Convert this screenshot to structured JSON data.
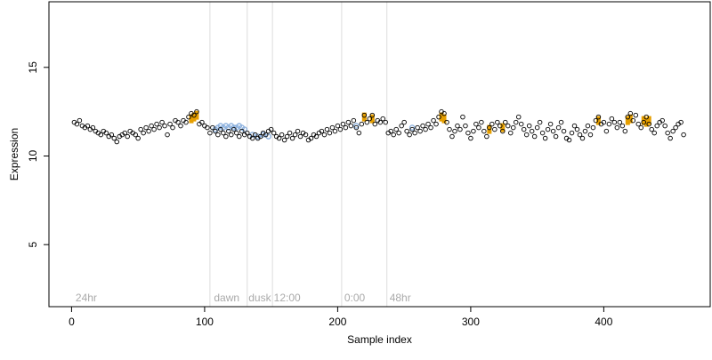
{
  "chart_data": {
    "type": "scatter",
    "title": "",
    "xlabel": "Sample index",
    "ylabel": "Expression",
    "xlim": [
      -17,
      480
    ],
    "ylim": [
      1.5,
      18.7
    ],
    "x_ticks": [
      0,
      100,
      200,
      300,
      400
    ],
    "y_ticks": [
      5,
      10,
      15
    ],
    "grid": false,
    "legend": "none",
    "vertical_lines": [
      104,
      132,
      151,
      203,
      237
    ],
    "annotations": [
      {
        "text": "24hr",
        "x": 3
      },
      {
        "text": "dawn",
        "x": 107
      },
      {
        "text": "dusk",
        "x": 133
      },
      {
        "text": "12:00",
        "x": 152
      },
      {
        "text": "0:00",
        "x": 205
      },
      {
        "text": "48hr",
        "x": 239
      }
    ],
    "annotation_y": 2.0,
    "colors": {
      "point_stroke": "#000000",
      "highlight_orange": "#e69f00",
      "highlight_blue": "#8fb3df",
      "vline": "#dddddd",
      "annotation": "#aaaaaa"
    },
    "series": [
      {
        "name": "",
        "marker": "open-circle",
        "points": [
          [
            2,
            11.9
          ],
          [
            4,
            11.8
          ],
          [
            6,
            12.0
          ],
          [
            8,
            11.7
          ],
          [
            10,
            11.6
          ],
          [
            12,
            11.7
          ],
          [
            14,
            11.5
          ],
          [
            16,
            11.6
          ],
          [
            18,
            11.4
          ],
          [
            20,
            11.3
          ],
          [
            22,
            11.2
          ],
          [
            24,
            11.4
          ],
          [
            26,
            11.3
          ],
          [
            28,
            11.1
          ],
          [
            30,
            11.2
          ],
          [
            32,
            11.0
          ],
          [
            34,
            10.8
          ],
          [
            36,
            11.1
          ],
          [
            38,
            11.2
          ],
          [
            40,
            11.3
          ],
          [
            42,
            11.1
          ],
          [
            44,
            11.4
          ],
          [
            46,
            11.3
          ],
          [
            48,
            11.2
          ],
          [
            50,
            11.0
          ],
          [
            52,
            11.5
          ],
          [
            54,
            11.3
          ],
          [
            56,
            11.6
          ],
          [
            58,
            11.4
          ],
          [
            60,
            11.7
          ],
          [
            62,
            11.5
          ],
          [
            64,
            11.8
          ],
          [
            66,
            11.6
          ],
          [
            68,
            11.9
          ],
          [
            70,
            11.7
          ],
          [
            72,
            11.2
          ],
          [
            74,
            11.8
          ],
          [
            76,
            11.6
          ],
          [
            78,
            12.0
          ],
          [
            80,
            11.9
          ],
          [
            82,
            11.7
          ],
          [
            84,
            12.0
          ],
          [
            86,
            11.9
          ],
          [
            88,
            12.2
          ],
          [
            90,
            12.4
          ],
          [
            92,
            12.3
          ],
          [
            94,
            12.5
          ],
          [
            96,
            11.8
          ],
          [
            98,
            11.9
          ],
          [
            100,
            11.7
          ],
          [
            102,
            11.6
          ],
          [
            104,
            11.3
          ],
          [
            106,
            11.6
          ],
          [
            108,
            11.4
          ],
          [
            110,
            11.2
          ],
          [
            112,
            11.5
          ],
          [
            114,
            11.3
          ],
          [
            116,
            11.1
          ],
          [
            118,
            11.4
          ],
          [
            120,
            11.2
          ],
          [
            122,
            11.5
          ],
          [
            124,
            11.3
          ],
          [
            126,
            11.1
          ],
          [
            128,
            11.4
          ],
          [
            130,
            11.2
          ],
          [
            132,
            11.3
          ],
          [
            134,
            11.1
          ],
          [
            136,
            11.0
          ],
          [
            138,
            11.2
          ],
          [
            140,
            11.0
          ],
          [
            142,
            11.1
          ],
          [
            144,
            11.3
          ],
          [
            146,
            11.2
          ],
          [
            148,
            11.4
          ],
          [
            150,
            11.5
          ],
          [
            152,
            11.3
          ],
          [
            154,
            11.1
          ],
          [
            156,
            11.0
          ],
          [
            158,
            11.2
          ],
          [
            160,
            10.9
          ],
          [
            162,
            11.1
          ],
          [
            164,
            11.3
          ],
          [
            166,
            11.0
          ],
          [
            168,
            11.2
          ],
          [
            170,
            11.4
          ],
          [
            172,
            11.1
          ],
          [
            174,
            11.3
          ],
          [
            176,
            11.2
          ],
          [
            178,
            10.9
          ],
          [
            180,
            11.0
          ],
          [
            182,
            11.2
          ],
          [
            184,
            11.1
          ],
          [
            186,
            11.3
          ],
          [
            188,
            11.4
          ],
          [
            190,
            11.2
          ],
          [
            192,
            11.5
          ],
          [
            194,
            11.3
          ],
          [
            196,
            11.6
          ],
          [
            198,
            11.4
          ],
          [
            200,
            11.7
          ],
          [
            202,
            11.5
          ],
          [
            204,
            11.8
          ],
          [
            206,
            11.6
          ],
          [
            208,
            11.9
          ],
          [
            210,
            11.7
          ],
          [
            212,
            12.0
          ],
          [
            214,
            11.6
          ],
          [
            216,
            11.3
          ],
          [
            218,
            11.8
          ],
          [
            220,
            12.3
          ],
          [
            222,
            11.9
          ],
          [
            224,
            12.1
          ],
          [
            226,
            12.3
          ],
          [
            228,
            11.8
          ],
          [
            230,
            12.0
          ],
          [
            232,
            11.9
          ],
          [
            234,
            12.1
          ],
          [
            236,
            11.9
          ],
          [
            238,
            11.3
          ],
          [
            240,
            11.4
          ],
          [
            242,
            11.2
          ],
          [
            244,
            11.5
          ],
          [
            246,
            11.3
          ],
          [
            248,
            11.7
          ],
          [
            250,
            11.9
          ],
          [
            252,
            11.4
          ],
          [
            254,
            11.2
          ],
          [
            256,
            11.5
          ],
          [
            258,
            11.3
          ],
          [
            260,
            11.6
          ],
          [
            262,
            11.4
          ],
          [
            264,
            11.7
          ],
          [
            266,
            11.5
          ],
          [
            268,
            11.8
          ],
          [
            270,
            11.6
          ],
          [
            272,
            12.0
          ],
          [
            274,
            11.8
          ],
          [
            276,
            12.2
          ],
          [
            278,
            12.5
          ],
          [
            280,
            12.4
          ],
          [
            282,
            11.9
          ],
          [
            284,
            11.5
          ],
          [
            286,
            11.1
          ],
          [
            288,
            11.4
          ],
          [
            290,
            11.7
          ],
          [
            292,
            11.5
          ],
          [
            294,
            12.2
          ],
          [
            296,
            11.7
          ],
          [
            298,
            11.3
          ],
          [
            300,
            11.0
          ],
          [
            302,
            11.4
          ],
          [
            304,
            11.8
          ],
          [
            306,
            11.6
          ],
          [
            308,
            11.9
          ],
          [
            310,
            11.4
          ],
          [
            312,
            11.1
          ],
          [
            314,
            11.6
          ],
          [
            316,
            11.8
          ],
          [
            318,
            11.5
          ],
          [
            320,
            11.9
          ],
          [
            322,
            11.7
          ],
          [
            324,
            11.4
          ],
          [
            326,
            11.9
          ],
          [
            328,
            11.7
          ],
          [
            330,
            11.3
          ],
          [
            332,
            11.6
          ],
          [
            334,
            11.9
          ],
          [
            336,
            12.2
          ],
          [
            338,
            11.8
          ],
          [
            340,
            11.5
          ],
          [
            342,
            11.2
          ],
          [
            344,
            11.7
          ],
          [
            346,
            11.4
          ],
          [
            348,
            11.1
          ],
          [
            350,
            11.6
          ],
          [
            352,
            11.9
          ],
          [
            354,
            11.3
          ],
          [
            356,
            11.0
          ],
          [
            358,
            11.5
          ],
          [
            360,
            11.8
          ],
          [
            362,
            11.4
          ],
          [
            364,
            11.1
          ],
          [
            366,
            11.6
          ],
          [
            368,
            11.9
          ],
          [
            370,
            11.4
          ],
          [
            372,
            11.0
          ],
          [
            374,
            10.9
          ],
          [
            376,
            11.3
          ],
          [
            378,
            11.7
          ],
          [
            380,
            11.5
          ],
          [
            382,
            11.2
          ],
          [
            384,
            11.0
          ],
          [
            386,
            11.4
          ],
          [
            388,
            11.7
          ],
          [
            390,
            11.2
          ],
          [
            392,
            11.6
          ],
          [
            394,
            12.0
          ],
          [
            396,
            12.2
          ],
          [
            398,
            11.8
          ],
          [
            400,
            11.9
          ],
          [
            402,
            11.4
          ],
          [
            404,
            11.8
          ],
          [
            406,
            12.1
          ],
          [
            408,
            11.9
          ],
          [
            410,
            11.6
          ],
          [
            412,
            11.9
          ],
          [
            414,
            11.7
          ],
          [
            416,
            11.4
          ],
          [
            418,
            12.2
          ],
          [
            420,
            12.4
          ],
          [
            422,
            12.0
          ],
          [
            424,
            12.3
          ],
          [
            426,
            11.8
          ],
          [
            428,
            11.6
          ],
          [
            430,
            11.9
          ],
          [
            432,
            12.2
          ],
          [
            434,
            11.8
          ],
          [
            436,
            11.5
          ],
          [
            438,
            11.3
          ],
          [
            440,
            11.7
          ],
          [
            442,
            11.9
          ],
          [
            444,
            12.0
          ],
          [
            446,
            11.7
          ],
          [
            448,
            11.3
          ],
          [
            450,
            11.0
          ],
          [
            452,
            11.4
          ],
          [
            454,
            11.6
          ],
          [
            456,
            11.8
          ],
          [
            458,
            11.9
          ],
          [
            460,
            11.2
          ]
        ]
      },
      {
        "name": "",
        "marker": "orange-bar",
        "points": [
          [
            90,
            12.1
          ],
          [
            92,
            12.2
          ],
          [
            94,
            12.3
          ],
          [
            220,
            12.2
          ],
          [
            226,
            12.1
          ],
          [
            278,
            12.2
          ],
          [
            280,
            12.1
          ],
          [
            314,
            11.5
          ],
          [
            324,
            11.6
          ],
          [
            396,
            12.0
          ],
          [
            418,
            12.0
          ],
          [
            420,
            12.1
          ],
          [
            430,
            12.0
          ],
          [
            432,
            11.9
          ],
          [
            434,
            12.0
          ]
        ]
      },
      {
        "name": "",
        "marker": "blue-circle",
        "points": [
          [
            108,
            11.5
          ],
          [
            110,
            11.6
          ],
          [
            112,
            11.7
          ],
          [
            114,
            11.6
          ],
          [
            116,
            11.7
          ],
          [
            118,
            11.6
          ],
          [
            120,
            11.7
          ],
          [
            122,
            11.6
          ],
          [
            124,
            11.6
          ],
          [
            126,
            11.7
          ],
          [
            128,
            11.6
          ],
          [
            130,
            11.5
          ],
          [
            136,
            11.2
          ],
          [
            140,
            11.1
          ],
          [
            144,
            11.2
          ],
          [
            148,
            11.1
          ],
          [
            214,
            11.7
          ],
          [
            256,
            11.6
          ]
        ]
      }
    ]
  }
}
